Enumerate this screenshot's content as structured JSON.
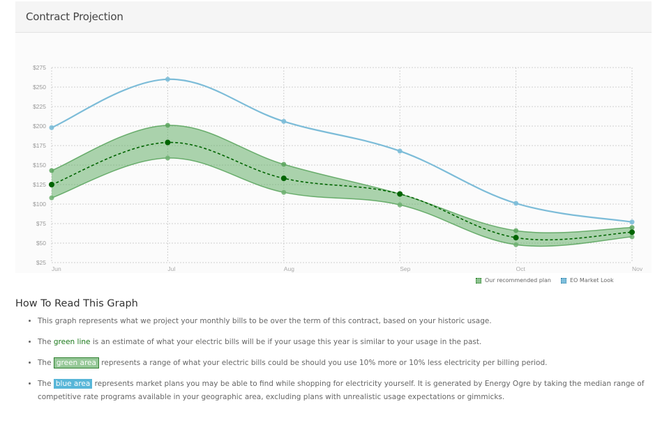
{
  "header": {
    "title": "Contract Projection"
  },
  "chart_data": {
    "type": "line",
    "categories": [
      "Jun",
      "Jul",
      "Aug",
      "Sep",
      "Oct",
      "Nov"
    ],
    "y_ticks": [
      "$25",
      "$50",
      "$75",
      "$100",
      "$125",
      "$150",
      "$175",
      "$200",
      "$225",
      "$250",
      "$275"
    ],
    "ylim": [
      25,
      275
    ],
    "grid": true,
    "legend_position": "bottom-right",
    "series": [
      {
        "name": "Our recommended plan",
        "values": [
          125,
          179,
          133,
          113,
          57,
          64
        ],
        "color": "#006400",
        "style": "dashed"
      },
      {
        "name": "EO Market Look",
        "values": [
          198,
          260,
          206,
          168,
          101,
          77
        ],
        "color": "#7cbcd8",
        "style": "solid"
      }
    ],
    "band": {
      "upper": [
        143,
        201,
        151,
        113,
        66,
        70
      ],
      "lower": [
        108,
        159,
        115,
        99,
        48,
        58
      ],
      "color": "#5aa95e"
    }
  },
  "legend": {
    "recommended": "Our recommended plan",
    "market": "EO Market Look"
  },
  "how_to": {
    "title": "How To Read This Graph",
    "item1": "This graph represents what we project your monthly bills to be over the term of this contract, based on your historic usage.",
    "item2_pre": "The ",
    "item2_hl": "green line",
    "item2_post": " is an estimate of what your electric bills will be if your usage this year is similar to your usage in the past.",
    "item3_pre": "The ",
    "item3_hl": "green area",
    "item3_post": " represents a range of what your electric bills could be should you use 10% more or 10% less electricity per billing period.",
    "item4_pre": "The ",
    "item4_hl": "blue area",
    "item4_post": " represents market plans you may be able to find while shopping for electricity yourself. It is generated by Energy Ogre by taking the median range of competitive rate programs available in your geographic area, excluding plans with unrealistic usage expectations or gimmicks."
  }
}
